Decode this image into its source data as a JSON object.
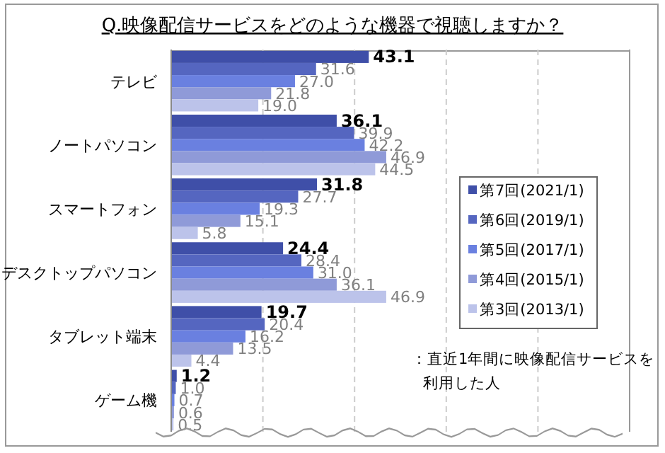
{
  "chart_data": {
    "type": "bar",
    "orientation": "horizontal",
    "title": "Q.映像配信サービスをどのような機器で視聴しますか？",
    "categories": [
      "テレビ",
      "ノートパソコン",
      "スマートフォン",
      "デスクトップパソコン",
      "タブレット端末",
      "ゲーム機"
    ],
    "series": [
      {
        "name": "第7回(2021/1)",
        "color": "#3f4fa8",
        "values": [
          43.1,
          36.1,
          31.8,
          24.4,
          19.7,
          1.2
        ],
        "value_labels": [
          "43.1",
          "36.1",
          "31.8",
          "24.4",
          "19.7",
          "1.2"
        ]
      },
      {
        "name": "第6回(2019/1)",
        "color": "#5566c0",
        "values": [
          31.6,
          39.9,
          27.7,
          28.4,
          20.4,
          1.0
        ],
        "value_labels": [
          "31.6",
          "39.9",
          "27.7",
          "28.4",
          "20.4",
          "1.0"
        ]
      },
      {
        "name": "第5回(2017/1)",
        "color": "#6a80e0",
        "values": [
          27.0,
          42.2,
          19.3,
          31.0,
          16.2,
          0.7
        ],
        "value_labels": [
          "27.0",
          "42.2",
          "19.3",
          "31.0",
          "16.2",
          "0.7"
        ]
      },
      {
        "name": "第4回(2015/1)",
        "color": "#8f9ad8",
        "values": [
          21.8,
          46.9,
          15.1,
          36.1,
          13.5,
          0.6
        ],
        "value_labels": [
          "21.8",
          "46.9",
          "15.1",
          "36.1",
          "13.5",
          "0.6"
        ]
      },
      {
        "name": "第3回(2013/1)",
        "color": "#bcc3ea",
        "values": [
          19.0,
          44.5,
          5.8,
          46.9,
          4.4,
          0.5
        ],
        "value_labels": [
          "19.0",
          "44.5",
          "5.8",
          "46.9",
          "4.4",
          "0.5"
        ]
      }
    ],
    "xlim": [
      0,
      100
    ],
    "xticks": [
      {
        "value": 0,
        "label": null
      },
      {
        "value": 20,
        "label": null
      },
      {
        "value": 40,
        "label": null
      },
      {
        "value": 60,
        "label": null
      },
      {
        "value": 80,
        "label": null
      },
      {
        "value": 100,
        "label": null
      }
    ],
    "grid": "x",
    "legend": "right",
    "tick_labels": "y",
    "annotations": [
      "：直近1年間に映像配信サービスを利用した人"
    ]
  }
}
